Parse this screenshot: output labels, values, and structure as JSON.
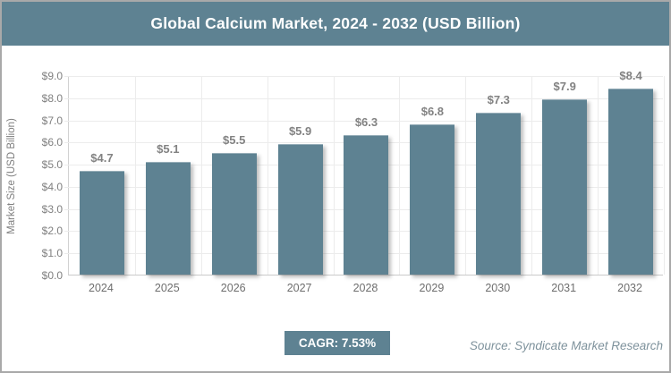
{
  "header": {
    "title": "Global Calcium Market, 2024 - 2032 (USD Billion)"
  },
  "chart_data": {
    "type": "bar",
    "title": "Global Calcium Market, 2024 - 2032 (USD Billion)",
    "categories": [
      "2024",
      "2025",
      "2026",
      "2027",
      "2028",
      "2029",
      "2030",
      "2031",
      "2032"
    ],
    "values": [
      4.7,
      5.1,
      5.5,
      5.9,
      6.3,
      6.8,
      7.3,
      7.9,
      8.4
    ],
    "value_labels": [
      "$4.7",
      "$5.1",
      "$5.5",
      "$5.9",
      "$6.3",
      "$6.8",
      "$7.3",
      "$7.9",
      "$8.4"
    ],
    "xlabel": "",
    "ylabel": "Market Size (USD Billion)",
    "ylim": [
      0,
      9
    ],
    "ytick_step": 1,
    "ytick_labels": [
      "$0.0",
      "$1.0",
      "$2.0",
      "$3.0",
      "$4.0",
      "$5.0",
      "$6.0",
      "$7.0",
      "$8.0",
      "$9.0"
    ],
    "grid": true,
    "legend": false,
    "bar_color": "#5e8292"
  },
  "footer": {
    "cagr_label": "CAGR: 7.53%",
    "source": "Source: Syndicate Market Research"
  },
  "colors": {
    "accent": "#5e8292",
    "figure_border": "#a9a9a9",
    "gridline": "#ececec",
    "tick_label": "#7f7f7f",
    "data_label": "#828282",
    "source_text": "#7e929c"
  }
}
